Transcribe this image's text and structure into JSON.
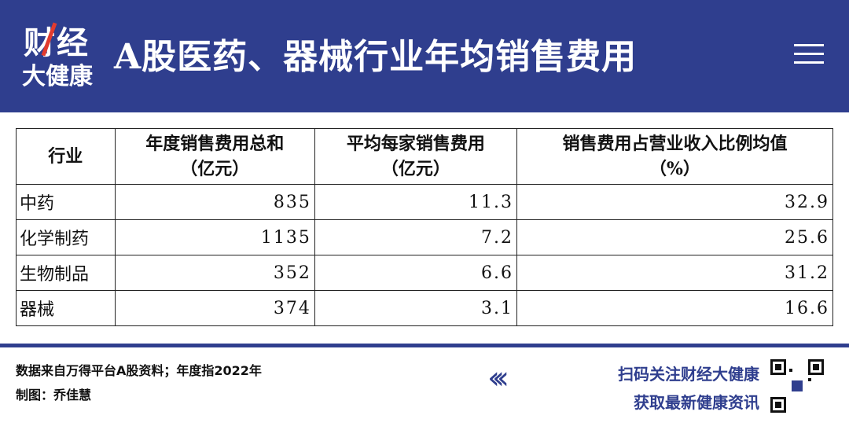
{
  "header": {
    "logo_top": "财经",
    "logo_bottom": "大健康",
    "title": "A股医药、器械行业年均销售费用"
  },
  "table": {
    "columns": [
      [
        "行业"
      ],
      [
        "年度销售费用总和",
        "（亿元）"
      ],
      [
        "平均每家销售费用",
        "（亿元）"
      ],
      [
        "销售费用占营业收入比例均值",
        "（%）"
      ]
    ],
    "rows": [
      [
        "中药",
        835,
        11.3,
        32.9
      ],
      [
        "化学制药",
        1135,
        7.2,
        25.6
      ],
      [
        "生物制品",
        352,
        6.6,
        31.2
      ],
      [
        "器械",
        374,
        3.1,
        16.6
      ]
    ]
  },
  "footer": {
    "source": "数据来自万得平台A股资料；年度指2022年",
    "author": "制图：乔佳慧",
    "cta_line1": "扫码关注财经大健康",
    "cta_line2": "获取最新健康资讯"
  }
}
